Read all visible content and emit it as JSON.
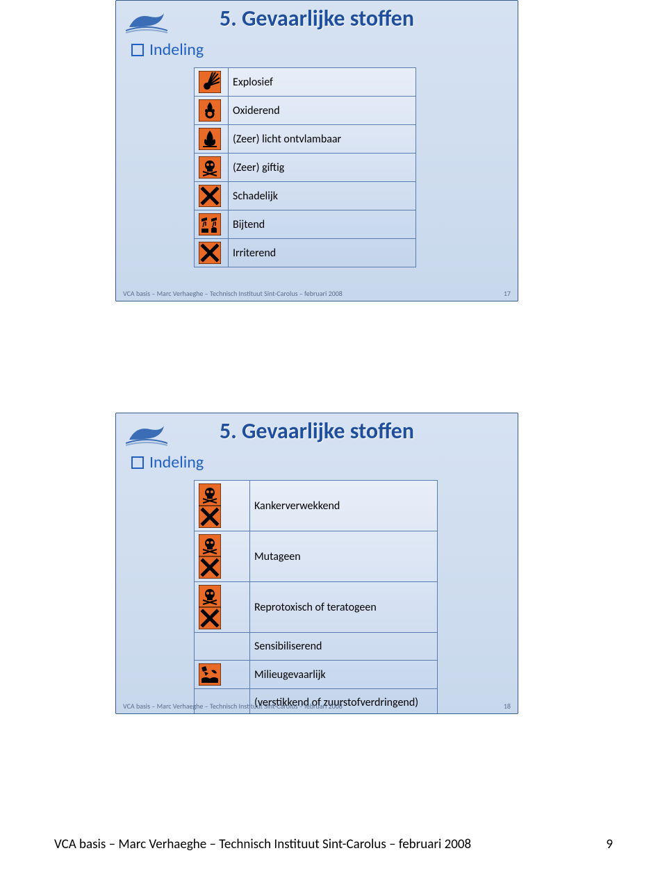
{
  "slides": [
    {
      "title": "5. Gevaarlijke stoffen",
      "section": "Indeling",
      "page_num": "17",
      "footer": "VCA basis – Marc Verhaeghe – Technisch Instituut Sint-Carolus – februari 2008",
      "rows": [
        {
          "label": "Explosief",
          "icons": [
            "explosive"
          ]
        },
        {
          "label": "Oxiderend",
          "icons": [
            "oxidizer"
          ]
        },
        {
          "label": "(Zeer) licht ontvlambaar",
          "icons": [
            "flame"
          ]
        },
        {
          "label": "(Zeer) giftig",
          "icons": [
            "skull"
          ]
        },
        {
          "label": "Schadelijk",
          "icons": [
            "xcross"
          ]
        },
        {
          "label": "Bijtend",
          "icons": [
            "corrosive"
          ]
        },
        {
          "label": "Irriterend",
          "icons": [
            "xcross"
          ]
        }
      ]
    },
    {
      "title": "5. Gevaarlijke stoffen",
      "section": "Indeling",
      "page_num": "18",
      "footer": "VCA basis – Marc Verhaeghe – Technisch Instituut Sint-Carolus – februari 2008",
      "rows": [
        {
          "label": "Kankerverwekkend",
          "icons": [
            "skull",
            "xcross"
          ]
        },
        {
          "label": "Mutageen",
          "icons": [
            "skull",
            "xcross"
          ]
        },
        {
          "label": "Reprotoxisch of teratogeen",
          "icons": [
            "skull",
            "xcross"
          ]
        },
        {
          "label": "Sensibiliserend",
          "icons": []
        },
        {
          "label": "Milieugevaarlijk",
          "icons": [
            "environment"
          ]
        },
        {
          "label": "(verstikkend of zuurstofverdringend)",
          "icons": []
        }
      ]
    }
  ],
  "page_footer_text": "VCA basis – Marc Verhaeghe – Technisch Instituut Sint-Carolus – februari 2008",
  "page_number": "9",
  "colors": {
    "hazard_bg": "#e96a26",
    "hazard_border": "#000000",
    "hazard_symbol": "#000000",
    "title_color": "#1f4e9b",
    "section_color": "#1f60c4",
    "slide_border": "#385d8a"
  }
}
